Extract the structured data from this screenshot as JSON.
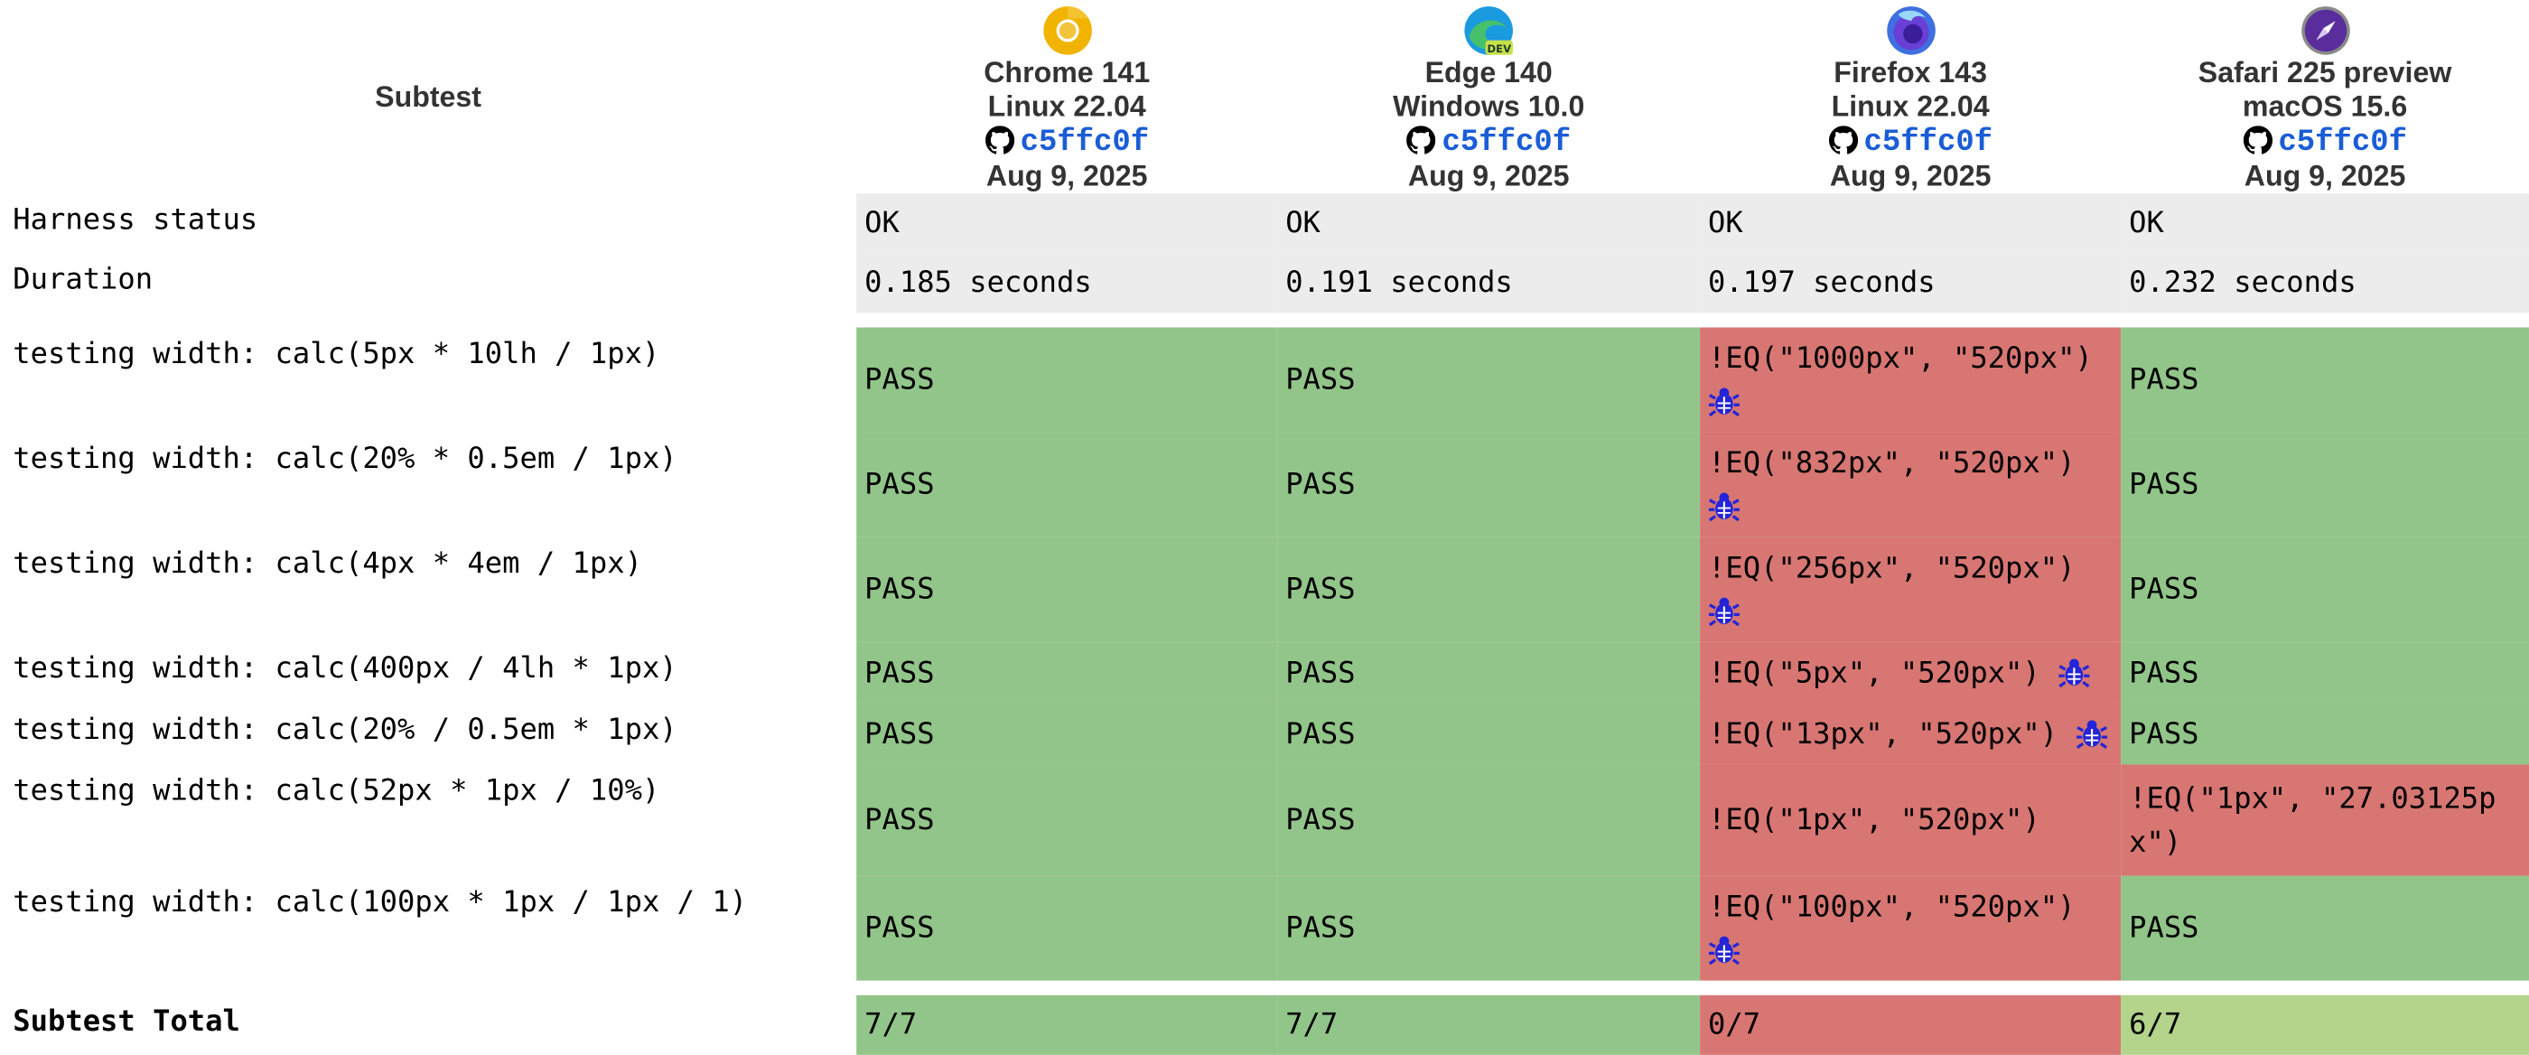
{
  "header": {
    "subtest_label": "Subtest"
  },
  "browsers": [
    {
      "icon": "chrome-icon",
      "name": "Chrome 141",
      "os": "Linux 22.04",
      "rev": "c5ffc0f",
      "date": "Aug 9, 2025"
    },
    {
      "icon": "edge-dev-icon",
      "name": "Edge 140",
      "os": "Windows 10.0",
      "rev": "c5ffc0f",
      "date": "Aug 9, 2025"
    },
    {
      "icon": "firefox-icon",
      "name": "Firefox 143",
      "os": "Linux 22.04",
      "rev": "c5ffc0f",
      "date": "Aug 9, 2025"
    },
    {
      "icon": "safari-preview-icon",
      "name": "Safari 225 preview",
      "os": "macOS 15.6",
      "rev": "c5ffc0f",
      "date": "Aug 9, 2025"
    }
  ],
  "meta_rows": [
    {
      "name": "Harness status",
      "values": [
        "OK",
        "OK",
        "OK",
        "OK"
      ]
    },
    {
      "name": "Duration",
      "values": [
        "0.185 seconds",
        "0.191 seconds",
        "0.197 seconds",
        "0.232 seconds"
      ]
    }
  ],
  "rows": [
    {
      "name": "testing width: calc(5px * 10lh / 1px)",
      "results": [
        "PASS",
        "PASS",
        "!EQ(\"1000px\", \"520px\")",
        "PASS"
      ]
    },
    {
      "name": "testing width: calc(20% * 0.5em / 1px)",
      "results": [
        "PASS",
        "PASS",
        "!EQ(\"832px\", \"520px\")",
        "PASS"
      ]
    },
    {
      "name": "testing width: calc(4px * 4em / 1px)",
      "results": [
        "PASS",
        "PASS",
        "!EQ(\"256px\", \"520px\")",
        "PASS"
      ]
    },
    {
      "name": "testing width: calc(400px / 4lh * 1px)",
      "results": [
        "PASS",
        "PASS",
        "!EQ(\"5px\", \"520px\")",
        "PASS"
      ]
    },
    {
      "name": "testing width: calc(20% / 0.5em * 1px)",
      "results": [
        "PASS",
        "PASS",
        "!EQ(\"13px\", \"520px\")",
        "PASS"
      ]
    },
    {
      "name": "testing width: calc(52px * 1px / 10%)",
      "results": [
        "PASS",
        "PASS",
        "!EQ(\"1px\", \"520px\")",
        "!EQ(\"1px\", \"27.03125px\")"
      ]
    },
    {
      "name": "testing width: calc(100px * 1px / 1px / 1)",
      "results": [
        "PASS",
        "PASS",
        "!EQ(\"100px\", \"520px\")",
        "PASS"
      ]
    }
  ],
  "total": {
    "label": "Subtest Total",
    "values": [
      "7/7",
      "7/7",
      "0/7",
      "6/7"
    ]
  },
  "colors": {
    "pass": "#92c589",
    "fail": "#d77672",
    "partial": "#b3d48a",
    "meta": "#ececec",
    "revision_link": "#1a5dd6",
    "bug_icon": "#2424d8"
  }
}
